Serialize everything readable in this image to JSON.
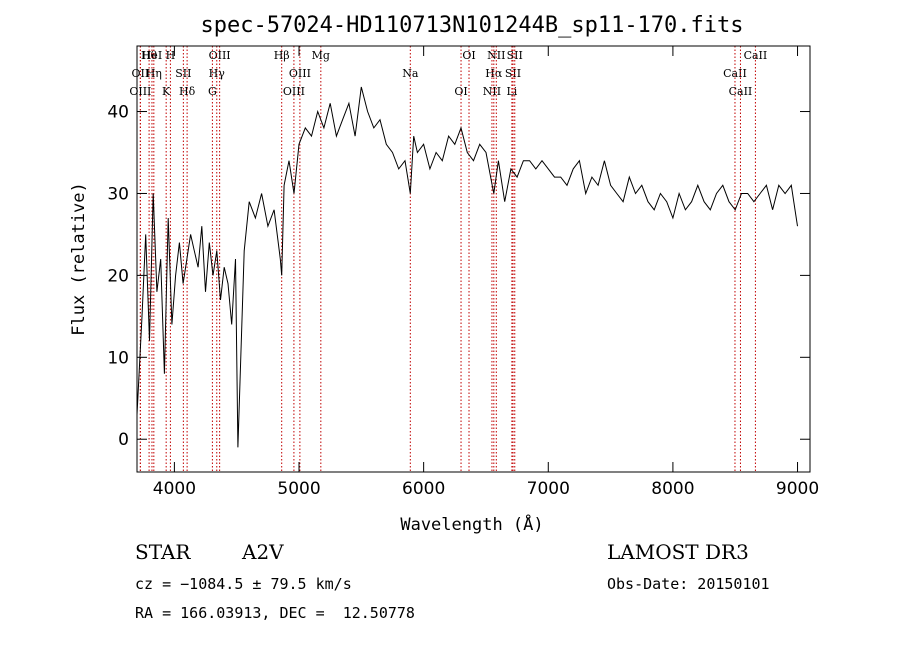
{
  "chart_data": {
    "type": "line",
    "title": "spec-57024-HD110713N101244B_sp11-170.fits",
    "xlabel": "Wavelength (Å)",
    "ylabel": "Flux (relative)",
    "xlim": [
      3700,
      9100
    ],
    "ylim": [
      -4,
      48
    ],
    "x_ticks": [
      4000,
      5000,
      6000,
      7000,
      8000,
      9000
    ],
    "y_ticks": [
      0,
      10,
      20,
      30,
      40
    ],
    "series": [
      {
        "name": "spectrum",
        "x": [
          3700,
          3740,
          3770,
          3800,
          3830,
          3860,
          3890,
          3920,
          3950,
          3980,
          4010,
          4040,
          4070,
          4100,
          4130,
          4160,
          4190,
          4220,
          4250,
          4280,
          4310,
          4340,
          4370,
          4400,
          4430,
          4460,
          4490,
          4510,
          4560,
          4600,
          4650,
          4700,
          4750,
          4800,
          4850,
          4861,
          4880,
          4920,
          4960,
          5000,
          5050,
          5100,
          5150,
          5200,
          5250,
          5300,
          5350,
          5400,
          5450,
          5500,
          5550,
          5600,
          5650,
          5700,
          5750,
          5800,
          5850,
          5893,
          5920,
          5950,
          6000,
          6050,
          6100,
          6150,
          6200,
          6250,
          6300,
          6350,
          6400,
          6450,
          6500,
          6550,
          6563,
          6600,
          6650,
          6700,
          6750,
          6800,
          6850,
          6900,
          6950,
          7000,
          7050,
          7100,
          7150,
          7200,
          7250,
          7300,
          7350,
          7400,
          7450,
          7500,
          7550,
          7600,
          7650,
          7700,
          7750,
          7800,
          7850,
          7900,
          7950,
          8000,
          8050,
          8100,
          8150,
          8200,
          8250,
          8300,
          8350,
          8400,
          8450,
          8500,
          8550,
          8600,
          8650,
          8700,
          8750,
          8800,
          8850,
          8900,
          8950,
          8980,
          9000
        ],
        "y": [
          3,
          15,
          25,
          12,
          30,
          18,
          22,
          8,
          27,
          14,
          20,
          24,
          19,
          22,
          25,
          23,
          21,
          26,
          18,
          24,
          20,
          23,
          17,
          21,
          19,
          14,
          22,
          -1,
          23,
          29,
          27,
          30,
          26,
          28,
          22,
          20,
          31,
          34,
          30,
          36,
          38,
          37,
          40,
          38,
          41,
          37,
          39,
          41,
          37,
          43,
          40,
          38,
          39,
          36,
          35,
          33,
          34,
          30,
          37,
          35,
          36,
          33,
          35,
          34,
          37,
          36,
          38,
          35,
          34,
          36,
          35,
          31,
          30,
          34,
          29,
          33,
          32,
          34,
          34,
          33,
          34,
          33,
          32,
          32,
          31,
          33,
          34,
          30,
          32,
          31,
          34,
          31,
          30,
          29,
          32,
          30,
          31,
          29,
          28,
          30,
          29,
          27,
          30,
          28,
          29,
          31,
          29,
          28,
          30,
          31,
          29,
          28,
          30,
          30,
          29,
          30,
          31,
          28,
          31,
          30,
          31,
          28,
          26
        ]
      }
    ],
    "line_markers": [
      {
        "label": "Hθ",
        "x": 3797
      },
      {
        "label": "OII",
        "x": 3727
      },
      {
        "label": "OIII",
        "x": 3727
      },
      {
        "label": "HeI",
        "x": 3820
      },
      {
        "label": "Hη",
        "x": 3835
      },
      {
        "label": "K",
        "x": 3934
      },
      {
        "label": "H",
        "x": 3968
      },
      {
        "label": "SII",
        "x": 4072
      },
      {
        "label": "Hδ",
        "x": 4102
      },
      {
        "label": "OIII",
        "x": 4363
      },
      {
        "label": "Hγ",
        "x": 4340
      },
      {
        "label": "G",
        "x": 4305
      },
      {
        "label": "Hβ",
        "x": 4861
      },
      {
        "label": "OIII",
        "x": 5007
      },
      {
        "label": "OIII",
        "x": 4959
      },
      {
        "label": "Mg",
        "x": 5175
      },
      {
        "label": "Na",
        "x": 5893
      },
      {
        "label": "OI",
        "x": 6300
      },
      {
        "label": "OI",
        "x": 6364
      },
      {
        "label": "Hα",
        "x": 6563
      },
      {
        "label": "NII",
        "x": 6548
      },
      {
        "label": "NII",
        "x": 6583
      },
      {
        "label": "SII",
        "x": 6717
      },
      {
        "label": "Li",
        "x": 6708
      },
      {
        "label": "SII",
        "x": 6731
      },
      {
        "label": "CaII",
        "x": 8498
      },
      {
        "label": "CaII",
        "x": 8542
      },
      {
        "label": "CaII",
        "x": 8662
      }
    ],
    "grid": false
  },
  "info": {
    "object_type": "STAR",
    "subclass": "A2V",
    "survey": "LAMOST DR3",
    "cz": "cz = −1084.5 ± 79.5 km/s",
    "obs_date": "Obs-Date: 20150101",
    "coords": "RA = 166.03913, DEC =  12.50778"
  },
  "colors": {
    "spectrum": "#000000",
    "marker": "#c00000"
  }
}
